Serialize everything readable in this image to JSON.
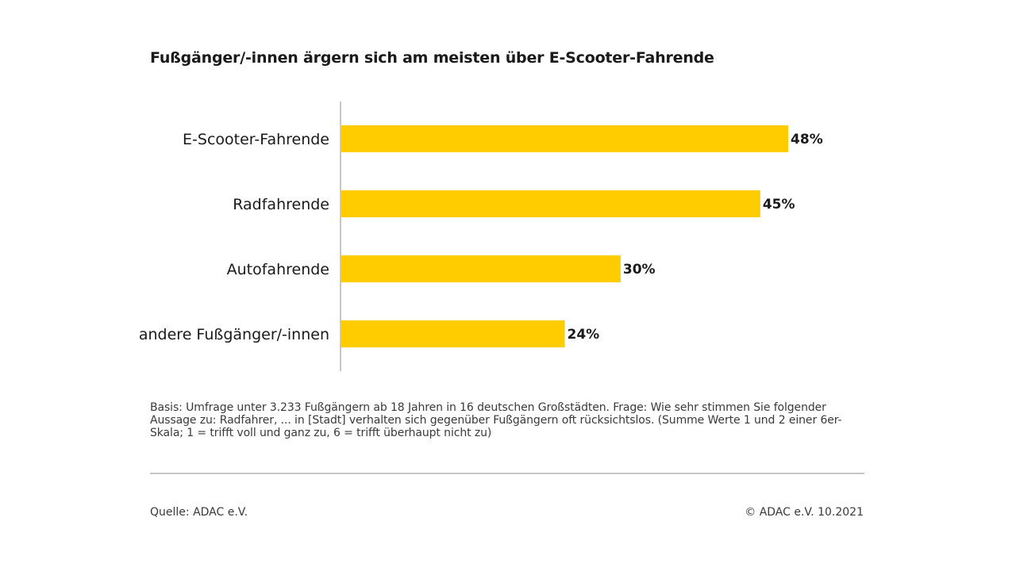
{
  "chart_data": {
    "type": "bar",
    "orientation": "horizontal",
    "title": "Fußgänger/-innen ärgern sich am meisten über E-Scooter-Fahrende",
    "categories": [
      "E-Scooter-Fahrende",
      "Radfahrende",
      "Autofahrende",
      "andere Fußgänger/-innen"
    ],
    "values": [
      48,
      45,
      30,
      24
    ],
    "value_labels": [
      "48%",
      "45%",
      "30%",
      "24%"
    ],
    "unit": "%",
    "xlim": [
      0,
      100
    ],
    "grid": false,
    "legend": "none",
    "bar_color": "#FFCC00"
  },
  "footnote": "Basis: Umfrage unter 3.233 Fußgängern ab 18 Jahren in 16 deutschen Großstädten. Frage: Wie sehr stimmen Sie folgender Aussage zu: Radfahrer, ... in [Stadt] verhalten sich gegenüber Fußgängern oft rücksichtslos. (Summe Werte 1 und 2 einer 6er-Skala; 1 = trifft voll und ganz zu, 6 = trifft überhaupt nicht zu)",
  "source": "Quelle: ADAC e.V.",
  "copyright": "© ADAC e.V. 10.2021"
}
